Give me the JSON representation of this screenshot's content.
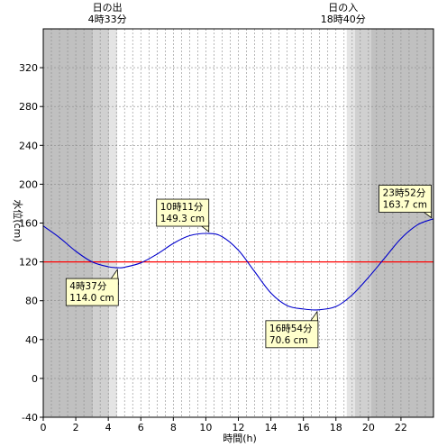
{
  "chart_data": {
    "type": "line",
    "xlabel": "時間(h)",
    "ylabel": "水位(cm)",
    "xlim": [
      0,
      24
    ],
    "ylim": [
      -40,
      360
    ],
    "x_ticks": [
      0,
      2,
      4,
      6,
      8,
      10,
      12,
      14,
      16,
      18,
      20,
      22
    ],
    "y_ticks": [
      -40,
      0,
      40,
      80,
      120,
      160,
      200,
      240,
      280,
      320
    ],
    "grid": "vertical dashed every 0.5 h; horizontal dashed every 40 cm",
    "reference_line": {
      "y": 120,
      "color": "#ff0000"
    },
    "sunrise": {
      "label": "日の出",
      "time": "4時33分",
      "hour": 4.55
    },
    "sunset": {
      "label": "日の入",
      "time": "18時40分",
      "hour": 18.667
    },
    "series": [
      {
        "color": "#0000cc",
        "x": [
          0,
          1,
          2,
          3,
          4,
          4.617,
          5,
          6,
          7,
          8,
          9,
          10.183,
          11,
          12,
          13,
          14,
          15,
          16,
          16.9,
          18,
          19,
          20,
          21,
          22,
          23,
          23.867,
          24
        ],
        "y": [
          157,
          145,
          131,
          120,
          115,
          114.0,
          114.5,
          119,
          128,
          139,
          147,
          149.3,
          146,
          132,
          110,
          88,
          75,
          71.5,
          70.6,
          74,
          86,
          104,
          124,
          144,
          158,
          163.7,
          163.8
        ]
      }
    ],
    "annotations": [
      {
        "time": "10時11分",
        "value": "149.3 cm",
        "x": 10.183,
        "y": 149.3
      },
      {
        "time": "4時37分",
        "value": "114.0 cm",
        "x": 4.617,
        "y": 114.0
      },
      {
        "time": "16時54分",
        "value": "70.6 cm",
        "x": 16.9,
        "y": 70.6
      },
      {
        "time": "23時52分",
        "value": "163.7 cm",
        "x": 23.867,
        "y": 163.7
      }
    ],
    "colors": {
      "night": "#c0c0c0",
      "twilight_dark": "#d0d0d0",
      "twilight_light": "#e4e4e4",
      "day": "#ffffff",
      "annotation_fill": "#ffffcc"
    }
  }
}
